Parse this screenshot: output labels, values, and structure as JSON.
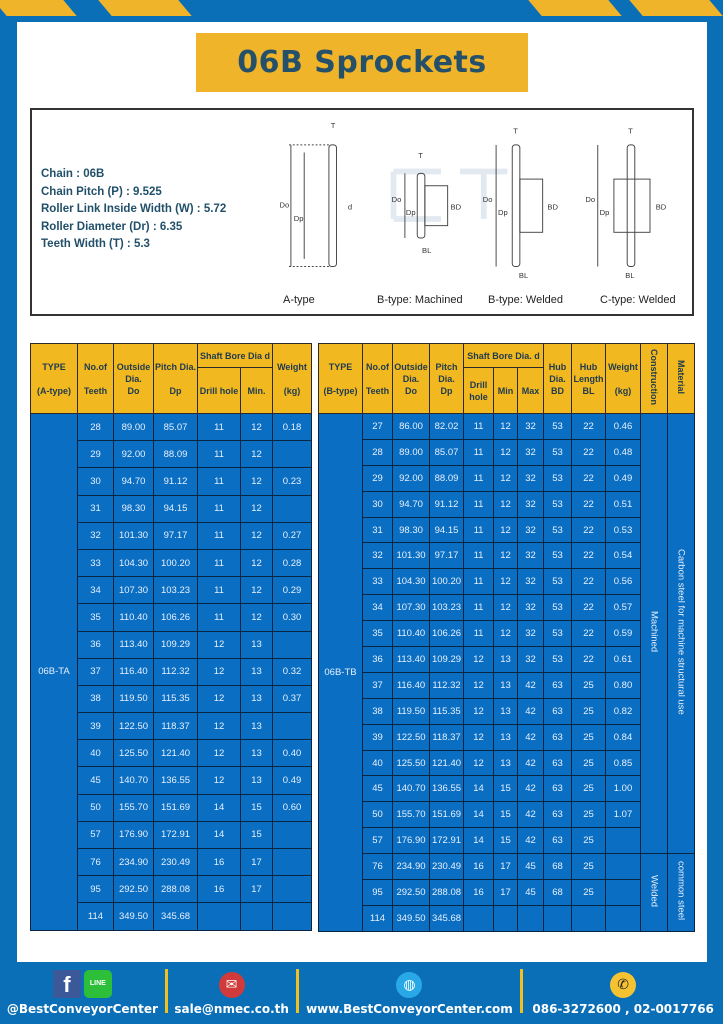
{
  "title": "06B Sprockets",
  "specs": [
    {
      "label": "Chain",
      "value": "06B"
    },
    {
      "label": "Chain Pitch (P)",
      "value": "9.525"
    },
    {
      "label": "Roller Link Inside Width (W)",
      "value": "5.72"
    },
    {
      "label": "Roller Diameter (Dr)",
      "value": "6.35"
    },
    {
      "label": "Teeth Width (T)",
      "value": "5.3"
    }
  ],
  "diagram": {
    "captions": [
      "A-type",
      "B-type: Machined",
      "B-type: Welded",
      "C-type: Welded"
    ],
    "labels": {
      "T": "T",
      "Do": "Do",
      "Dp": "Dp",
      "d": "d",
      "BD": "BD",
      "BL": "BL"
    },
    "watermark": "BEST CONVEYOR CENTER"
  },
  "table_a": {
    "headers": {
      "type": "TYPE",
      "type_sub": "(A-type)",
      "teeth": "No.of",
      "teeth_sub": "Teeth",
      "do": "Outside",
      "do_sub": "Dia.",
      "do_sub2": "Do",
      "dp": "Pitch Dia.",
      "dp_sub": "Dp",
      "bore": "Shaft Bore Dia d",
      "drill": "Drill hole",
      "min": "Min.",
      "weight": "Weight",
      "weight_sub": "(kg)"
    },
    "type_value": "06B-TA",
    "rows": [
      [
        "28",
        "89.00",
        "85.07",
        "11",
        "12",
        "0.18"
      ],
      [
        "29",
        "92.00",
        "88.09",
        "11",
        "12",
        ""
      ],
      [
        "30",
        "94.70",
        "91.12",
        "11",
        "12",
        "0.23"
      ],
      [
        "31",
        "98.30",
        "94.15",
        "11",
        "12",
        ""
      ],
      [
        "32",
        "101.30",
        "97.17",
        "11",
        "12",
        "0.27"
      ],
      [
        "33",
        "104.30",
        "100.20",
        "11",
        "12",
        "0.28"
      ],
      [
        "34",
        "107.30",
        "103.23",
        "11",
        "12",
        "0.29"
      ],
      [
        "35",
        "110.40",
        "106.26",
        "11",
        "12",
        "0.30"
      ],
      [
        "36",
        "113.40",
        "109.29",
        "12",
        "13",
        ""
      ],
      [
        "37",
        "116.40",
        "112.32",
        "12",
        "13",
        "0.32"
      ],
      [
        "38",
        "119.50",
        "115.35",
        "12",
        "13",
        "0.37"
      ],
      [
        "39",
        "122.50",
        "118.37",
        "12",
        "13",
        ""
      ],
      [
        "40",
        "125.50",
        "121.40",
        "12",
        "13",
        "0.40"
      ],
      [
        "45",
        "140.70",
        "136.55",
        "12",
        "13",
        "0.49"
      ],
      [
        "50",
        "155.70",
        "151.69",
        "14",
        "15",
        "0.60"
      ],
      [
        "57",
        "176.90",
        "172.91",
        "14",
        "15",
        ""
      ],
      [
        "76",
        "234.90",
        "230.49",
        "16",
        "17",
        ""
      ],
      [
        "95",
        "292.50",
        "288.08",
        "16",
        "17",
        ""
      ],
      [
        "114",
        "349.50",
        "345.68",
        "",
        "",
        ""
      ]
    ]
  },
  "table_b": {
    "headers": {
      "type": "TYPE",
      "type_sub": "(B-type)",
      "teeth": "No.of",
      "teeth_sub": "Teeth",
      "do": "Outside",
      "do_sub": "Dia.",
      "do_sub2": "Do",
      "dp": "Pitch",
      "dp_sub": "Dia.",
      "dp_sub2": "Dp",
      "bore": "Shaft Bore Dia. d",
      "drill": "Drill hole",
      "min": "Min",
      "max": "Max",
      "bd": "Hub",
      "bd_sub": "Dia.",
      "bd_sub2": "BD",
      "bl": "Hub",
      "bl_sub": "Length",
      "bl_sub2": "BL",
      "weight": "Weight",
      "weight_sub": "(kg)",
      "construction": "Construction",
      "material": "Material"
    },
    "type_value": "06B-TB",
    "construction": [
      "Machined",
      "Welded"
    ],
    "material": [
      "Carbon steel for machine structural use",
      "common steel"
    ],
    "rows": [
      [
        "27",
        "86.00",
        "82.02",
        "11",
        "12",
        "32",
        "53",
        "22",
        "0.46"
      ],
      [
        "28",
        "89.00",
        "85.07",
        "11",
        "12",
        "32",
        "53",
        "22",
        "0.48"
      ],
      [
        "29",
        "92.00",
        "88.09",
        "11",
        "12",
        "32",
        "53",
        "22",
        "0.49"
      ],
      [
        "30",
        "94.70",
        "91.12",
        "11",
        "12",
        "32",
        "53",
        "22",
        "0.51"
      ],
      [
        "31",
        "98.30",
        "94.15",
        "11",
        "12",
        "32",
        "53",
        "22",
        "0.53"
      ],
      [
        "32",
        "101.30",
        "97.17",
        "11",
        "12",
        "32",
        "53",
        "22",
        "0.54"
      ],
      [
        "33",
        "104.30",
        "100.20",
        "11",
        "12",
        "32",
        "53",
        "22",
        "0.56"
      ],
      [
        "34",
        "107.30",
        "103.23",
        "11",
        "12",
        "32",
        "53",
        "22",
        "0.57"
      ],
      [
        "35",
        "110.40",
        "106.26",
        "11",
        "12",
        "32",
        "53",
        "22",
        "0.59"
      ],
      [
        "36",
        "113.40",
        "109.29",
        "12",
        "13",
        "32",
        "53",
        "22",
        "0.61"
      ],
      [
        "37",
        "116.40",
        "112.32",
        "12",
        "13",
        "42",
        "63",
        "25",
        "0.80"
      ],
      [
        "38",
        "119.50",
        "115.35",
        "12",
        "13",
        "42",
        "63",
        "25",
        "0.82"
      ],
      [
        "39",
        "122.50",
        "118.37",
        "12",
        "13",
        "42",
        "63",
        "25",
        "0.84"
      ],
      [
        "40",
        "125.50",
        "121.40",
        "12",
        "13",
        "42",
        "63",
        "25",
        "0.85"
      ],
      [
        "45",
        "140.70",
        "136.55",
        "14",
        "15",
        "42",
        "63",
        "25",
        "1.00"
      ],
      [
        "50",
        "155.70",
        "151.69",
        "14",
        "15",
        "42",
        "63",
        "25",
        "1.07"
      ],
      [
        "57",
        "176.90",
        "172.91",
        "14",
        "15",
        "42",
        "63",
        "25",
        ""
      ],
      [
        "76",
        "234.90",
        "230.49",
        "16",
        "17",
        "45",
        "68",
        "25",
        ""
      ],
      [
        "95",
        "292.50",
        "288.08",
        "16",
        "17",
        "45",
        "68",
        "25",
        ""
      ],
      [
        "114",
        "349.50",
        "345.68",
        "",
        "",
        "",
        "",
        "",
        ""
      ]
    ]
  },
  "footer": {
    "social": "@BestConveyorCenter",
    "line_badge": "LINE",
    "facebook_glyph": "f",
    "email": "sale@nmec.co.th",
    "website": "www.BestConveyorCenter.com",
    "phone": "086-3272600 , 02-0017766"
  },
  "colors": {
    "brand_blue": "#0b6fb8",
    "accent_yellow": "#f0b42a",
    "table_blue": "#0a6fc2",
    "title_text": "#24506a"
  }
}
